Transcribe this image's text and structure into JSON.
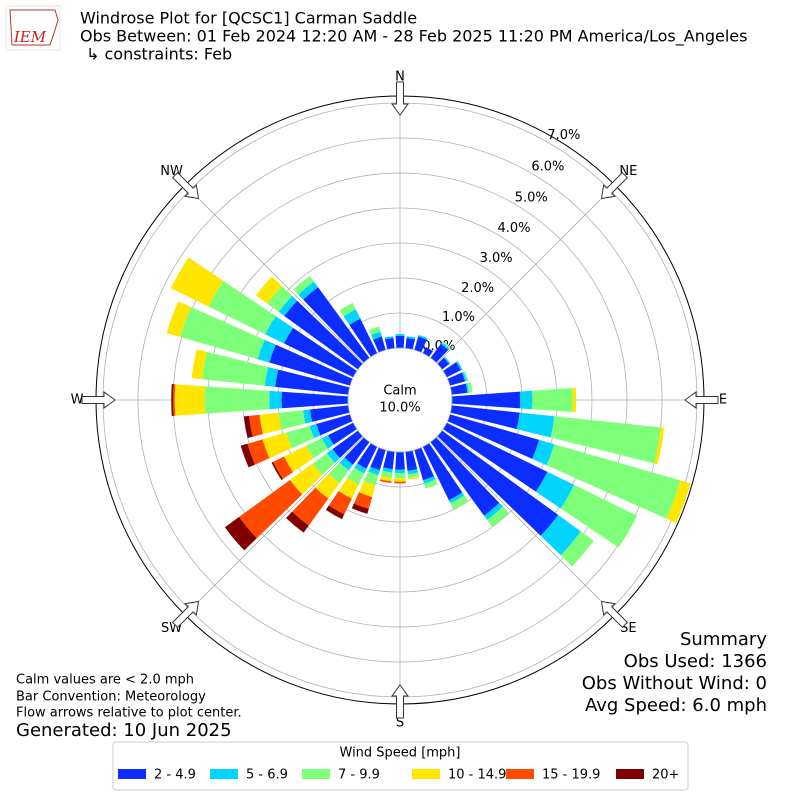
{
  "chart_data": {
    "type": "windrose",
    "logo_text": "IEM",
    "title": "Windrose Plot for [QCSC1] Carman Saddle",
    "subtitle": "Obs Between: 01 Feb 2024 12:20 AM - 28 Feb 2025 11:20 PM America/Los_Angeles",
    "constraints": "↳ constraints: Feb",
    "direction_labels": [
      "N",
      "NE",
      "E",
      "SE",
      "S",
      "SW",
      "W",
      "NW"
    ],
    "calm_label": "Calm",
    "calm_value": 10.0,
    "calm_value_label": "10.0%",
    "ylim": [
      0,
      7.2
    ],
    "yticks": [
      {
        "value": 0,
        "label": "0.0%"
      },
      {
        "value": 1,
        "label": "1.0%"
      },
      {
        "value": 2,
        "label": "2.0%"
      },
      {
        "value": 3,
        "label": "3.0%"
      },
      {
        "value": 4,
        "label": "4.0%"
      },
      {
        "value": 5,
        "label": "5.0%"
      },
      {
        "value": 6,
        "label": "6.0%"
      },
      {
        "value": 7,
        "label": "7.0%"
      }
    ],
    "grid": true,
    "legend_title": "Wind Speed [mph]",
    "legend_position": "bottom",
    "x": [
      0,
      10,
      20,
      30,
      40,
      50,
      60,
      70,
      80,
      90,
      100,
      110,
      120,
      130,
      140,
      150,
      160,
      170,
      180,
      190,
      200,
      210,
      220,
      230,
      240,
      250,
      260,
      270,
      280,
      290,
      300,
      310,
      320,
      330,
      340,
      350
    ],
    "series": [
      {
        "name": "2 - 4.9",
        "color": "#0c2dff",
        "values": [
          0.35,
          0.3,
          0.4,
          0.2,
          0.5,
          0.25,
          0.45,
          0.45,
          0.45,
          1.95,
          1.95,
          2.65,
          3.2,
          4.1,
          2.6,
          1.7,
          0.9,
          0.55,
          0.5,
          0.5,
          0.6,
          0.7,
          0.8,
          0.9,
          0.8,
          1.0,
          1.1,
          1.9,
          2.1,
          2.4,
          2.2,
          2.6,
          2.5,
          1.1,
          0.4,
          0.3
        ]
      },
      {
        "name": "5 - 6.9",
        "color": "#00d4ff",
        "values": [
          0.05,
          0.05,
          0.05,
          0,
          0.05,
          0.05,
          0.05,
          0.05,
          0.05,
          0.35,
          1.0,
          0.45,
          0.85,
          0.8,
          0.15,
          0.1,
          0.1,
          0.1,
          0.1,
          0.1,
          0.15,
          0.15,
          0.2,
          0.2,
          0.2,
          0.2,
          0.2,
          0.35,
          0.3,
          0.35,
          0.6,
          0.2,
          0.2,
          0.3,
          0.15,
          0.05
        ]
      },
      {
        "name": "7 - 9.9",
        "color": "#7dff7a",
        "values": [
          0,
          0,
          0,
          0,
          0.05,
          0,
          0,
          0.05,
          0.1,
          1.15,
          3.05,
          3.75,
          2.0,
          0.45,
          0.25,
          0.2,
          0.15,
          0.1,
          0.15,
          0.15,
          0.3,
          0.35,
          0.45,
          0.5,
          0.5,
          0.7,
          0.7,
          1.85,
          1.8,
          2.3,
          1.8,
          0.4,
          0.2,
          0.2,
          0.15,
          0
        ]
      },
      {
        "name": "10 - 14.9",
        "color": "#ffe600",
        "values": [
          0,
          0,
          0,
          0,
          0,
          0,
          0,
          0,
          0,
          0.1,
          0.1,
          0.3,
          0,
          0,
          0,
          0,
          0,
          0.05,
          0.1,
          0.1,
          0.35,
          0.45,
          0.55,
          0.8,
          0.7,
          0.7,
          0.55,
          0.85,
          0.3,
          0.4,
          1.2,
          0.4,
          0,
          0,
          0,
          0
        ]
      },
      {
        "name": "15 - 19.9",
        "color": "#ff4a00",
        "values": [
          0,
          0,
          0,
          0,
          0,
          0,
          0,
          0,
          0,
          0,
          0,
          0,
          0,
          0,
          0,
          0,
          0,
          0,
          0.05,
          0.05,
          0.35,
          0.5,
          0.95,
          1.8,
          0.35,
          0.45,
          0.3,
          0.05,
          0,
          0,
          0,
          0,
          0,
          0,
          0,
          0
        ]
      },
      {
        "name": "20+",
        "color": "#800000",
        "values": [
          0,
          0,
          0,
          0,
          0,
          0,
          0,
          0,
          0,
          0,
          0,
          0,
          0,
          0,
          0,
          0,
          0,
          0,
          0,
          0,
          0.15,
          0.15,
          0.25,
          0.5,
          0.05,
          0.2,
          0.15,
          0.05,
          0,
          0,
          0,
          0,
          0,
          0,
          0,
          0
        ]
      }
    ],
    "notes": [
      "Calm values are < 2.0 mph",
      "Bar Convention: Meteorology",
      "Flow arrows relative to plot center."
    ],
    "generated": "Generated: 10 Jun 2025",
    "summary": [
      "Summary",
      "Obs Used: 1366",
      "Obs Without Wind: 0",
      "Avg Speed: 6.0 mph"
    ]
  }
}
